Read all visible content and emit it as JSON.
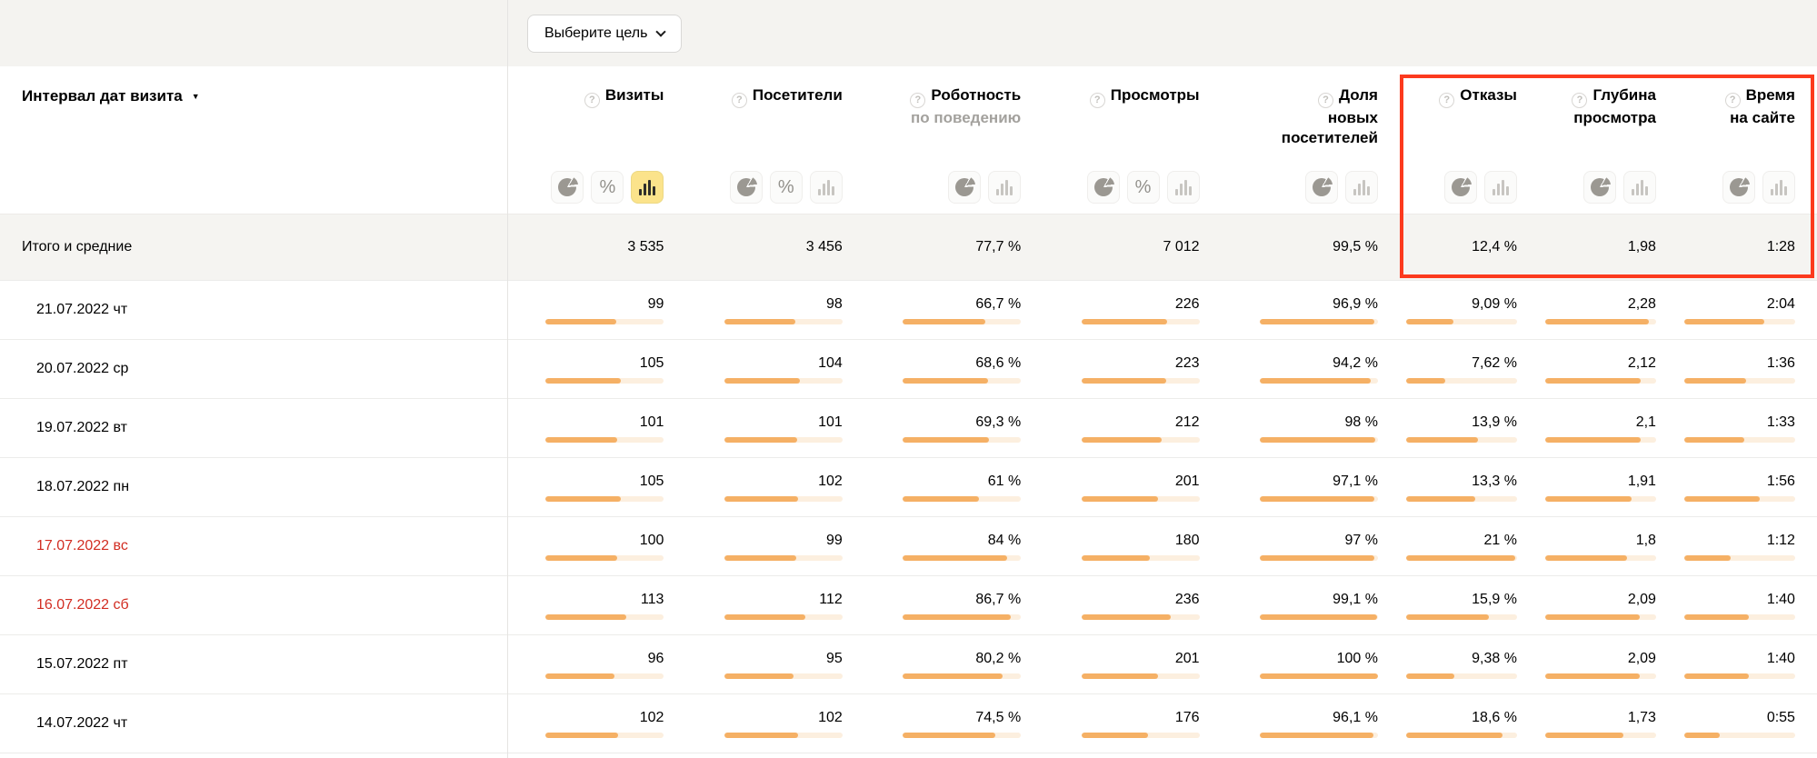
{
  "colors": {
    "band_bg": "#f4f3f0",
    "totals_bg": "#f5f4f1",
    "bar_fill": "#f5b065",
    "bar_track": "#fcefdf",
    "accent_yellow": "#fbe38b",
    "highlight_red": "#fc3a1e",
    "weekend_red": "#d22d22"
  },
  "controls": {
    "goal_button_label": "Выберите цель",
    "help_glyph": "?",
    "sort_glyph": "▼"
  },
  "table": {
    "row_header_label": "Интервал дат визита",
    "columns": [
      {
        "id": "visits",
        "lines": [
          "Визиты"
        ],
        "sub": "",
        "toggles": [
          "pie",
          "percent",
          "bar"
        ],
        "active_toggle": "bar",
        "bar_ref": 166,
        "highlighted": false
      },
      {
        "id": "visitors",
        "lines": [
          "Посетители"
        ],
        "sub": "",
        "toggles": [
          "pie",
          "percent",
          "bar"
        ],
        "active_toggle": "",
        "bar_ref": 163,
        "highlighted": false
      },
      {
        "id": "robotness",
        "lines": [
          "Роботность"
        ],
        "sub": "по поведению",
        "toggles": [
          "pie",
          "bar"
        ],
        "active_toggle": "",
        "bar_ref": 95,
        "highlighted": false
      },
      {
        "id": "views",
        "lines": [
          "Просмотры"
        ],
        "sub": "",
        "toggles": [
          "pie",
          "percent",
          "bar"
        ],
        "active_toggle": "",
        "bar_ref": 310,
        "highlighted": false
      },
      {
        "id": "new-share",
        "lines": [
          "Доля",
          "новых",
          "посетителей"
        ],
        "sub": "",
        "toggles": [
          "pie",
          "bar"
        ],
        "active_toggle": "",
        "bar_ref": 100,
        "highlighted": false
      },
      {
        "id": "bounce",
        "lines": [
          "Отказы"
        ],
        "sub": "",
        "toggles": [
          "pie",
          "bar"
        ],
        "active_toggle": "",
        "bar_ref": 21.4,
        "highlighted": true
      },
      {
        "id": "depth",
        "lines": [
          "Глубина",
          "просмотра"
        ],
        "sub": "",
        "toggles": [
          "pie",
          "bar"
        ],
        "active_toggle": "",
        "bar_ref": 2.45,
        "highlighted": true
      },
      {
        "id": "time",
        "lines": [
          "Время",
          "на сайте"
        ],
        "sub": "",
        "toggles": [
          "pie",
          "bar"
        ],
        "active_toggle": "",
        "bar_ref": 171,
        "highlighted": true
      }
    ],
    "totals_row": {
      "label": "Итого и средние",
      "values": [
        "3 535",
        "3 456",
        "77,7 %",
        "7 012",
        "99,5 %",
        "12,4 %",
        "1,98",
        "1:28"
      ]
    },
    "rows": [
      {
        "label": "21.07.2022 чт",
        "weekend": false,
        "values": [
          "99",
          "98",
          "66,7 %",
          "226",
          "96,9 %",
          "9,09 %",
          "2,28",
          "2:04"
        ],
        "bar_values": [
          99,
          98,
          66.7,
          226,
          96.9,
          9.09,
          2.28,
          124
        ]
      },
      {
        "label": "20.07.2022 ср",
        "weekend": false,
        "values": [
          "105",
          "104",
          "68,6 %",
          "223",
          "94,2 %",
          "7,62 %",
          "2,12",
          "1:36"
        ],
        "bar_values": [
          105,
          104,
          68.6,
          223,
          94.2,
          7.62,
          2.12,
          96
        ]
      },
      {
        "label": "19.07.2022 вт",
        "weekend": false,
        "values": [
          "101",
          "101",
          "69,3 %",
          "212",
          "98 %",
          "13,9 %",
          "2,1",
          "1:33"
        ],
        "bar_values": [
          101,
          101,
          69.3,
          212,
          98,
          13.9,
          2.1,
          93
        ]
      },
      {
        "label": "18.07.2022 пн",
        "weekend": false,
        "values": [
          "105",
          "102",
          "61 %",
          "201",
          "97,1 %",
          "13,3 %",
          "1,91",
          "1:56"
        ],
        "bar_values": [
          105,
          102,
          61,
          201,
          97.1,
          13.3,
          1.91,
          116
        ]
      },
      {
        "label": "17.07.2022 вс",
        "weekend": true,
        "values": [
          "100",
          "99",
          "84 %",
          "180",
          "97 %",
          "21 %",
          "1,8",
          "1:12"
        ],
        "bar_values": [
          100,
          99,
          84,
          180,
          97,
          21,
          1.8,
          72
        ]
      },
      {
        "label": "16.07.2022 сб",
        "weekend": true,
        "values": [
          "113",
          "112",
          "86,7 %",
          "236",
          "99,1 %",
          "15,9 %",
          "2,09",
          "1:40"
        ],
        "bar_values": [
          113,
          112,
          86.7,
          236,
          99.1,
          15.9,
          2.09,
          100
        ]
      },
      {
        "label": "15.07.2022 пт",
        "weekend": false,
        "values": [
          "96",
          "95",
          "80,2 %",
          "201",
          "100 %",
          "9,38 %",
          "2,09",
          "1:40"
        ],
        "bar_values": [
          96,
          95,
          80.2,
          201,
          100,
          9.38,
          2.09,
          100
        ]
      },
      {
        "label": "14.07.2022 чт",
        "weekend": false,
        "values": [
          "102",
          "102",
          "74,5 %",
          "176",
          "96,1 %",
          "18,6 %",
          "1,73",
          "0:55"
        ],
        "bar_values": [
          102,
          102,
          74.5,
          176,
          96.1,
          18.6,
          1.73,
          55
        ]
      }
    ]
  }
}
